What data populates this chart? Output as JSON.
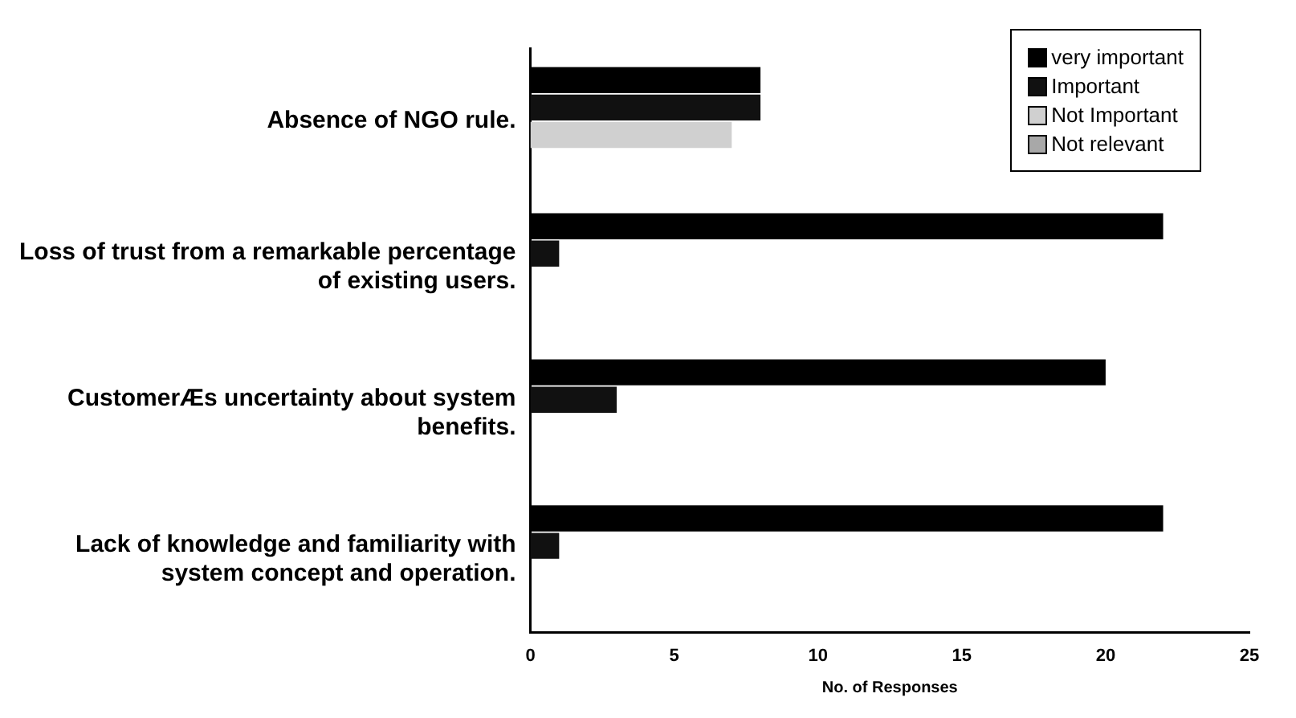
{
  "chart_data": {
    "type": "bar",
    "orientation": "horizontal",
    "xlabel": "No. of Responses",
    "categories": [
      "Absence of NGO rule.",
      "Loss of trust from a remarkable percentage of existing users.",
      "CustomerÆs uncertainty about system benefits.",
      "Lack of knowledge and familiarity with system concept and operation."
    ],
    "series": [
      {
        "name": "very important",
        "color": "#000000",
        "values": [
          8,
          22,
          20,
          22
        ]
      },
      {
        "name": "Important",
        "color": "#111111",
        "values": [
          8,
          1,
          3,
          1
        ]
      },
      {
        "name": "Not Important",
        "color": "#d0d0d0",
        "values": [
          7,
          0,
          0,
          0
        ]
      },
      {
        "name": "Not relevant",
        "color": "#a8a8a8",
        "values": [
          0,
          0,
          0,
          0
        ]
      }
    ],
    "xlim": [
      0,
      25
    ],
    "xticks": [
      0,
      5,
      10,
      15,
      20,
      25
    ],
    "grid": false,
    "legend": "top right"
  }
}
